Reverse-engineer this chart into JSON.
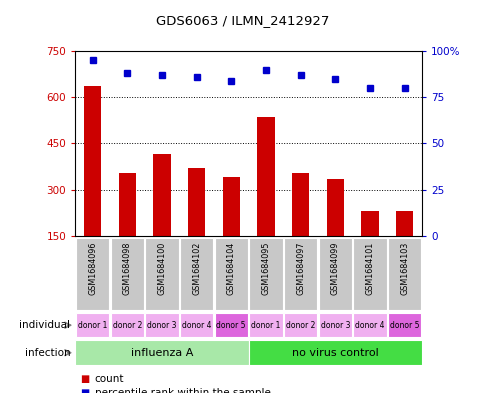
{
  "title": "GDS6063 / ILMN_2412927",
  "samples": [
    "GSM1684096",
    "GSM1684098",
    "GSM1684100",
    "GSM1684102",
    "GSM1684104",
    "GSM1684095",
    "GSM1684097",
    "GSM1684099",
    "GSM1684101",
    "GSM1684103"
  ],
  "counts": [
    635,
    355,
    415,
    370,
    340,
    535,
    355,
    335,
    230,
    230
  ],
  "percentiles": [
    95,
    88,
    87,
    86,
    84,
    90,
    87,
    85,
    80,
    80
  ],
  "ylim_left": [
    150,
    750
  ],
  "ylim_right": [
    0,
    100
  ],
  "yticks_left": [
    150,
    300,
    450,
    600,
    750
  ],
  "yticks_right": [
    0,
    25,
    50,
    75,
    100
  ],
  "ytick_labels_right": [
    "0",
    "25",
    "50",
    "75",
    "100%"
  ],
  "bar_color": "#cc0000",
  "dot_color": "#0000cc",
  "infection_groups": [
    {
      "label": "influenza A",
      "start": 0,
      "end": 5,
      "color": "#a8e8a8"
    },
    {
      "label": "no virus control",
      "start": 5,
      "end": 10,
      "color": "#44dd44"
    }
  ],
  "individual_labels": [
    "donor 1",
    "donor 2",
    "donor 3",
    "donor 4",
    "donor 5",
    "donor 1",
    "donor 2",
    "donor 3",
    "donor 4",
    "donor 5"
  ],
  "individual_colors": [
    "#f0b0f0",
    "#f0b0f0",
    "#f0b0f0",
    "#f0b0f0",
    "#dd66dd",
    "#f0b0f0",
    "#f0b0f0",
    "#f0b0f0",
    "#f0b0f0",
    "#dd66dd"
  ],
  "sample_bg_color": "#c8c8c8",
  "legend_count_color": "#cc0000",
  "legend_dot_color": "#0000cc"
}
